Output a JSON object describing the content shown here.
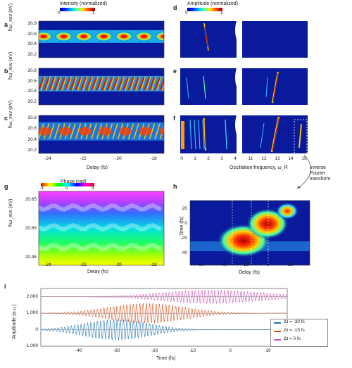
{
  "panels": {
    "a": "a",
    "b": "b",
    "c": "c",
    "d": "d",
    "e": "e",
    "f": "f",
    "g": "g",
    "h": "h",
    "i": "i"
  },
  "colorbars": {
    "intensity": {
      "label": "Intensity (normalized)",
      "min": "0",
      "max": "1"
    },
    "amplitude": {
      "label": "Amplitude (normalized)",
      "min": "0",
      "max": "1"
    },
    "phase": {
      "label": "Phase (rad)",
      "min": "-3",
      "mid": "0",
      "max": "3"
    }
  },
  "left_axes": {
    "ylabel": "ħω_xuv (eV)",
    "yticks": [
      "20.8",
      "20.6",
      "20.4",
      "20.2"
    ],
    "xlabel": "Delay (fs)",
    "xticks": [
      "-24",
      "-22",
      "-20",
      "-18"
    ]
  },
  "right_axes": {
    "xlabel": "Oscillation frequency, ω_R",
    "xticks_left": [
      "0",
      "1",
      "2",
      "3",
      "4"
    ],
    "xticks_right": [
      "11",
      "12",
      "13",
      "14",
      "15"
    ]
  },
  "annotation": {
    "line1": "Inverse",
    "line2": "Fourier",
    "line3": "transform"
  },
  "panel_g": {
    "ylabel": "ħω_xuv (eV)",
    "yticks": [
      "20.65",
      "20.55",
      "20.45"
    ],
    "xlabel": "Delay (fs)",
    "xticks": [
      "-24",
      "-22",
      "-20",
      "-18"
    ]
  },
  "panel_h": {
    "ylabel": "Time (fs)",
    "yticks": [
      "20",
      "0",
      "-20",
      "-40"
    ],
    "xlabel": "Delay (fs)",
    "xticks": [
      "-60",
      "-40",
      "-20",
      "0",
      "20"
    ]
  },
  "panel_i": {
    "ylabel": "Amplitude (a.u.)",
    "yticks": [
      "2,000",
      "1,000",
      "0",
      "-1,000"
    ],
    "xlabel": "Time (fs)",
    "xticks": [
      "-40",
      "-30",
      "-20",
      "-10",
      "0",
      "10"
    ],
    "legend": [
      "Δt = -30 fs",
      "Δt = -15 fs",
      "Δt = 0 fs"
    ]
  },
  "colors": {
    "pink": "#d257b3",
    "orange": "#d9541e",
    "blue": "#1f77b4",
    "heat_bg": "#0a1a9c"
  },
  "chart_data": [
    {
      "type": "line",
      "title": "",
      "xlabel": "Time (fs)",
      "ylabel": "Amplitude (a.u.)",
      "xlim": [
        -50,
        15
      ],
      "ylim": [
        -1000,
        2500
      ],
      "series": [
        {
          "name": "Δt = -30 fs",
          "offset": 0,
          "envelope_center": -30,
          "envelope_width": 12,
          "peak_amplitude": 650
        },
        {
          "name": "Δt = -15 fs",
          "offset": 1000,
          "envelope_center": -22,
          "envelope_width": 14,
          "peak_amplitude": 620
        },
        {
          "name": "Δt = 0 fs",
          "offset": 2000,
          "envelope_center": -5,
          "envelope_width": 18,
          "peak_amplitude": 420
        }
      ]
    }
  ]
}
